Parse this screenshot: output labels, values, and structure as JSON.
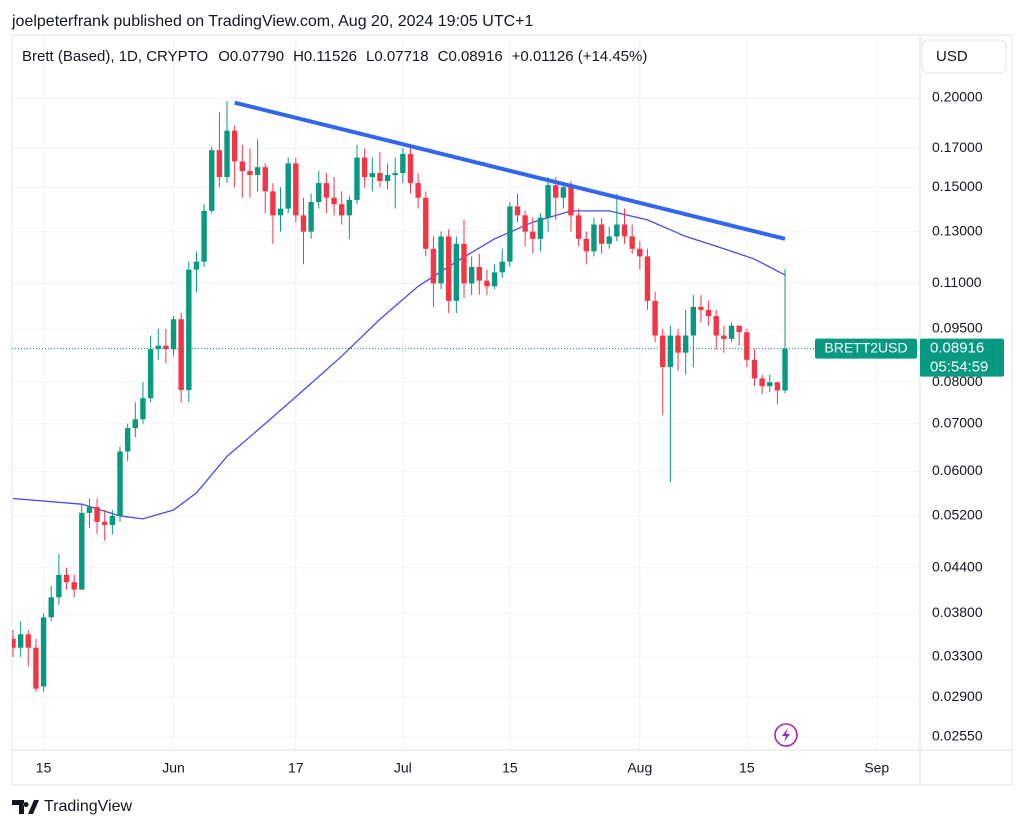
{
  "chart_data": {
    "type": "candlestick",
    "published": "joelpeterfrank published on TradingView.com, Aug 20, 2024 19:05 UTC+1",
    "title": "Brett (Based), 1D, CRYPTO",
    "ohlc_text": [
      "O0.07790",
      "H0.11526",
      "L0.07718",
      "C0.08916",
      "+0.01126 (+14.45%)"
    ],
    "currency": "USD",
    "symbol_label": "BRETT2USD",
    "last_price": {
      "value": 0.08916,
      "label": "0.08916"
    },
    "countdown": "05:54:59",
    "brand": "TradingView",
    "up_color": "#089981",
    "down_color": "#f23645",
    "log": true,
    "grid": true,
    "x": [
      "2024-05-11",
      "2024-05-12",
      "2024-05-13",
      "2024-05-14",
      "2024-05-15",
      "2024-05-16",
      "2024-05-17",
      "2024-05-18",
      "2024-05-19",
      "2024-05-20",
      "2024-05-21",
      "2024-05-22",
      "2024-05-23",
      "2024-05-24",
      "2024-05-25",
      "2024-05-26",
      "2024-05-27",
      "2024-05-28",
      "2024-05-29",
      "2024-05-30",
      "2024-05-31",
      "2024-06-01",
      "2024-06-02",
      "2024-06-03",
      "2024-06-04",
      "2024-06-05",
      "2024-06-06",
      "2024-06-07",
      "2024-06-08",
      "2024-06-09",
      "2024-06-10",
      "2024-06-11",
      "2024-06-12",
      "2024-06-13",
      "2024-06-14",
      "2024-06-15",
      "2024-06-16",
      "2024-06-17",
      "2024-06-18",
      "2024-06-19",
      "2024-06-20",
      "2024-06-21",
      "2024-06-22",
      "2024-06-23",
      "2024-06-24",
      "2024-06-25",
      "2024-06-26",
      "2024-06-27",
      "2024-06-28",
      "2024-06-29",
      "2024-06-30",
      "2024-07-01",
      "2024-07-02",
      "2024-07-03",
      "2024-07-04",
      "2024-07-05",
      "2024-07-06",
      "2024-07-07",
      "2024-07-08",
      "2024-07-09",
      "2024-07-10",
      "2024-07-11",
      "2024-07-12",
      "2024-07-13",
      "2024-07-14",
      "2024-07-15",
      "2024-07-16",
      "2024-07-17",
      "2024-07-18",
      "2024-07-19",
      "2024-07-20",
      "2024-07-21",
      "2024-07-22",
      "2024-07-23",
      "2024-07-24",
      "2024-07-25",
      "2024-07-26",
      "2024-07-27",
      "2024-07-28",
      "2024-07-29",
      "2024-07-30",
      "2024-07-31",
      "2024-08-01",
      "2024-08-02",
      "2024-08-03",
      "2024-08-04",
      "2024-08-05",
      "2024-08-06",
      "2024-08-07",
      "2024-08-08",
      "2024-08-09",
      "2024-08-10",
      "2024-08-11",
      "2024-08-12",
      "2024-08-13",
      "2024-08-14",
      "2024-08-15",
      "2024-08-16",
      "2024-08-17",
      "2024-08-18",
      "2024-08-19",
      "2024-08-20"
    ],
    "open": [
      0.035,
      0.034,
      0.0355,
      0.034,
      0.03,
      0.0375,
      0.04,
      0.043,
      0.042,
      0.041,
      0.0525,
      0.0535,
      0.051,
      0.0505,
      0.052,
      0.064,
      0.069,
      0.071,
      0.076,
      0.089,
      0.09,
      0.089,
      0.098,
      0.078,
      0.115,
      0.118,
      0.139,
      0.169,
      0.155,
      0.18,
      0.163,
      0.158,
      0.156,
      0.16,
      0.148,
      0.137,
      0.14,
      0.162,
      0.137,
      0.13,
      0.143,
      0.152,
      0.145,
      0.142,
      0.137,
      0.144,
      0.165,
      0.155,
      0.157,
      0.153,
      0.156,
      0.157,
      0.167,
      0.152,
      0.145,
      0.123,
      0.11,
      0.128,
      0.104,
      0.125,
      0.11,
      0.116,
      0.111,
      0.109,
      0.114,
      0.118,
      0.141,
      0.137,
      0.13,
      0.127,
      0.136,
      0.151,
      0.145,
      0.15,
      0.137,
      0.127,
      0.122,
      0.133,
      0.125,
      0.128,
      0.133,
      0.128,
      0.123,
      0.12,
      0.104,
      0.093,
      0.084,
      0.093,
      0.088,
      0.093,
      0.102,
      0.101,
      0.099,
      0.093,
      0.092,
      0.096,
      0.094,
      0.086,
      0.081,
      0.079,
      0.08,
      0.0779
    ],
    "high": [
      0.036,
      0.037,
      0.036,
      0.035,
      0.038,
      0.0415,
      0.046,
      0.044,
      0.043,
      0.054,
      0.055,
      0.055,
      0.053,
      0.053,
      0.065,
      0.07,
      0.075,
      0.08,
      0.093,
      0.095,
      0.095,
      0.099,
      0.1,
      0.118,
      0.122,
      0.142,
      0.171,
      0.191,
      0.198,
      0.183,
      0.172,
      0.17,
      0.175,
      0.162,
      0.152,
      0.15,
      0.165,
      0.165,
      0.145,
      0.147,
      0.158,
      0.157,
      0.155,
      0.148,
      0.146,
      0.172,
      0.17,
      0.165,
      0.168,
      0.162,
      0.165,
      0.17,
      0.171,
      0.157,
      0.148,
      0.128,
      0.13,
      0.131,
      0.128,
      0.135,
      0.12,
      0.121,
      0.115,
      0.117,
      0.123,
      0.143,
      0.147,
      0.139,
      0.136,
      0.138,
      0.155,
      0.155,
      0.152,
      0.153,
      0.14,
      0.13,
      0.136,
      0.136,
      0.132,
      0.147,
      0.14,
      0.133,
      0.126,
      0.123,
      0.107,
      0.095,
      0.096,
      0.095,
      0.101,
      0.106,
      0.106,
      0.104,
      0.101,
      0.096,
      0.097,
      0.096,
      0.095,
      0.089,
      0.082,
      0.082,
      0.08,
      0.11526
    ],
    "low": [
      0.033,
      0.033,
      0.032,
      0.0295,
      0.0295,
      0.037,
      0.039,
      0.041,
      0.04,
      0.041,
      0.05,
      0.049,
      0.048,
      0.049,
      0.051,
      0.062,
      0.067,
      0.07,
      0.075,
      0.086,
      0.085,
      0.087,
      0.075,
      0.075,
      0.107,
      0.116,
      0.138,
      0.15,
      0.152,
      0.15,
      0.145,
      0.145,
      0.148,
      0.138,
      0.125,
      0.13,
      0.138,
      0.134,
      0.117,
      0.127,
      0.14,
      0.138,
      0.137,
      0.133,
      0.127,
      0.142,
      0.15,
      0.148,
      0.15,
      0.149,
      0.14,
      0.152,
      0.147,
      0.14,
      0.12,
      0.102,
      0.108,
      0.1,
      0.1,
      0.105,
      0.106,
      0.106,
      0.106,
      0.108,
      0.112,
      0.116,
      0.134,
      0.124,
      0.121,
      0.122,
      0.13,
      0.135,
      0.14,
      0.13,
      0.124,
      0.117,
      0.12,
      0.121,
      0.123,
      0.126,
      0.125,
      0.121,
      0.115,
      0.101,
      0.091,
      0.072,
      0.058,
      0.083,
      0.082,
      0.084,
      0.097,
      0.096,
      0.089,
      0.088,
      0.091,
      0.09,
      0.084,
      0.079,
      0.077,
      0.0775,
      0.0745,
      0.07718
    ],
    "close": [
      0.034,
      0.0355,
      0.034,
      0.0298,
      0.0375,
      0.04,
      0.043,
      0.042,
      0.041,
      0.0525,
      0.0535,
      0.051,
      0.0505,
      0.052,
      0.064,
      0.069,
      0.071,
      0.076,
      0.089,
      0.09,
      0.089,
      0.098,
      0.078,
      0.115,
      0.118,
      0.139,
      0.169,
      0.155,
      0.18,
      0.163,
      0.158,
      0.156,
      0.16,
      0.148,
      0.137,
      0.14,
      0.162,
      0.137,
      0.13,
      0.143,
      0.152,
      0.145,
      0.142,
      0.137,
      0.144,
      0.165,
      0.155,
      0.157,
      0.153,
      0.156,
      0.157,
      0.167,
      0.152,
      0.145,
      0.123,
      0.11,
      0.128,
      0.104,
      0.125,
      0.11,
      0.116,
      0.111,
      0.109,
      0.114,
      0.118,
      0.141,
      0.137,
      0.13,
      0.127,
      0.136,
      0.151,
      0.145,
      0.15,
      0.137,
      0.127,
      0.122,
      0.133,
      0.125,
      0.128,
      0.133,
      0.128,
      0.123,
      0.12,
      0.104,
      0.093,
      0.084,
      0.093,
      0.088,
      0.093,
      0.102,
      0.101,
      0.099,
      0.093,
      0.092,
      0.096,
      0.094,
      0.086,
      0.081,
      0.079,
      0.08,
      0.0779,
      0.08916
    ],
    "moving_average": {
      "color": "#4a4ae6",
      "x": [
        "2024-05-11",
        "2024-05-20",
        "2024-05-25",
        "2024-05-28",
        "2024-06-01",
        "2024-06-04",
        "2024-06-08",
        "2024-06-13",
        "2024-06-18",
        "2024-06-23",
        "2024-06-28",
        "2024-07-03",
        "2024-07-08",
        "2024-07-13",
        "2024-07-18",
        "2024-07-23",
        "2024-07-28",
        "2024-08-02",
        "2024-08-07",
        "2024-08-12",
        "2024-08-16",
        "2024-08-20"
      ],
      "values": [
        0.055,
        0.054,
        0.052,
        0.0515,
        0.053,
        0.056,
        0.063,
        0.07,
        0.078,
        0.087,
        0.098,
        0.109,
        0.118,
        0.127,
        0.134,
        0.139,
        0.139,
        0.135,
        0.128,
        0.123,
        0.119,
        0.113
      ]
    },
    "trendline": {
      "color": "#3366f0",
      "x": [
        "2024-06-09",
        "2024-08-20"
      ],
      "values": [
        0.197,
        0.127
      ]
    },
    "xlim": [
      "2024-05-11",
      "2024-09-06"
    ],
    "xticks": [
      {
        "value": "2024-05-15",
        "label": "15"
      },
      {
        "value": "2024-06-01",
        "label": "Jun"
      },
      {
        "value": "2024-06-17",
        "label": "17"
      },
      {
        "value": "2024-07-01",
        "label": "Jul"
      },
      {
        "value": "2024-07-15",
        "label": "15"
      },
      {
        "value": "2024-08-01",
        "label": "Aug"
      },
      {
        "value": "2024-08-15",
        "label": "15"
      },
      {
        "value": "2024-09-01",
        "label": "Sep"
      }
    ],
    "ylim": [
      0.02445,
      0.245
    ],
    "yticks": [
      {
        "value": 0.2,
        "label": "0.20000"
      },
      {
        "value": 0.17,
        "label": "0.17000"
      },
      {
        "value": 0.15,
        "label": "0.15000"
      },
      {
        "value": 0.13,
        "label": "0.13000"
      },
      {
        "value": 0.11,
        "label": "0.11000"
      },
      {
        "value": 0.095,
        "label": "0.09500"
      },
      {
        "value": 0.08,
        "label": "0.08000"
      },
      {
        "value": 0.07,
        "label": "0.07000"
      },
      {
        "value": 0.06,
        "label": "0.06000"
      },
      {
        "value": 0.052,
        "label": "0.05200"
      },
      {
        "value": 0.044,
        "label": "0.04400"
      },
      {
        "value": 0.038,
        "label": "0.03800"
      },
      {
        "value": 0.033,
        "label": "0.03300"
      },
      {
        "value": 0.029,
        "label": "0.02900"
      },
      {
        "value": 0.0255,
        "label": "0.02550"
      }
    ]
  }
}
